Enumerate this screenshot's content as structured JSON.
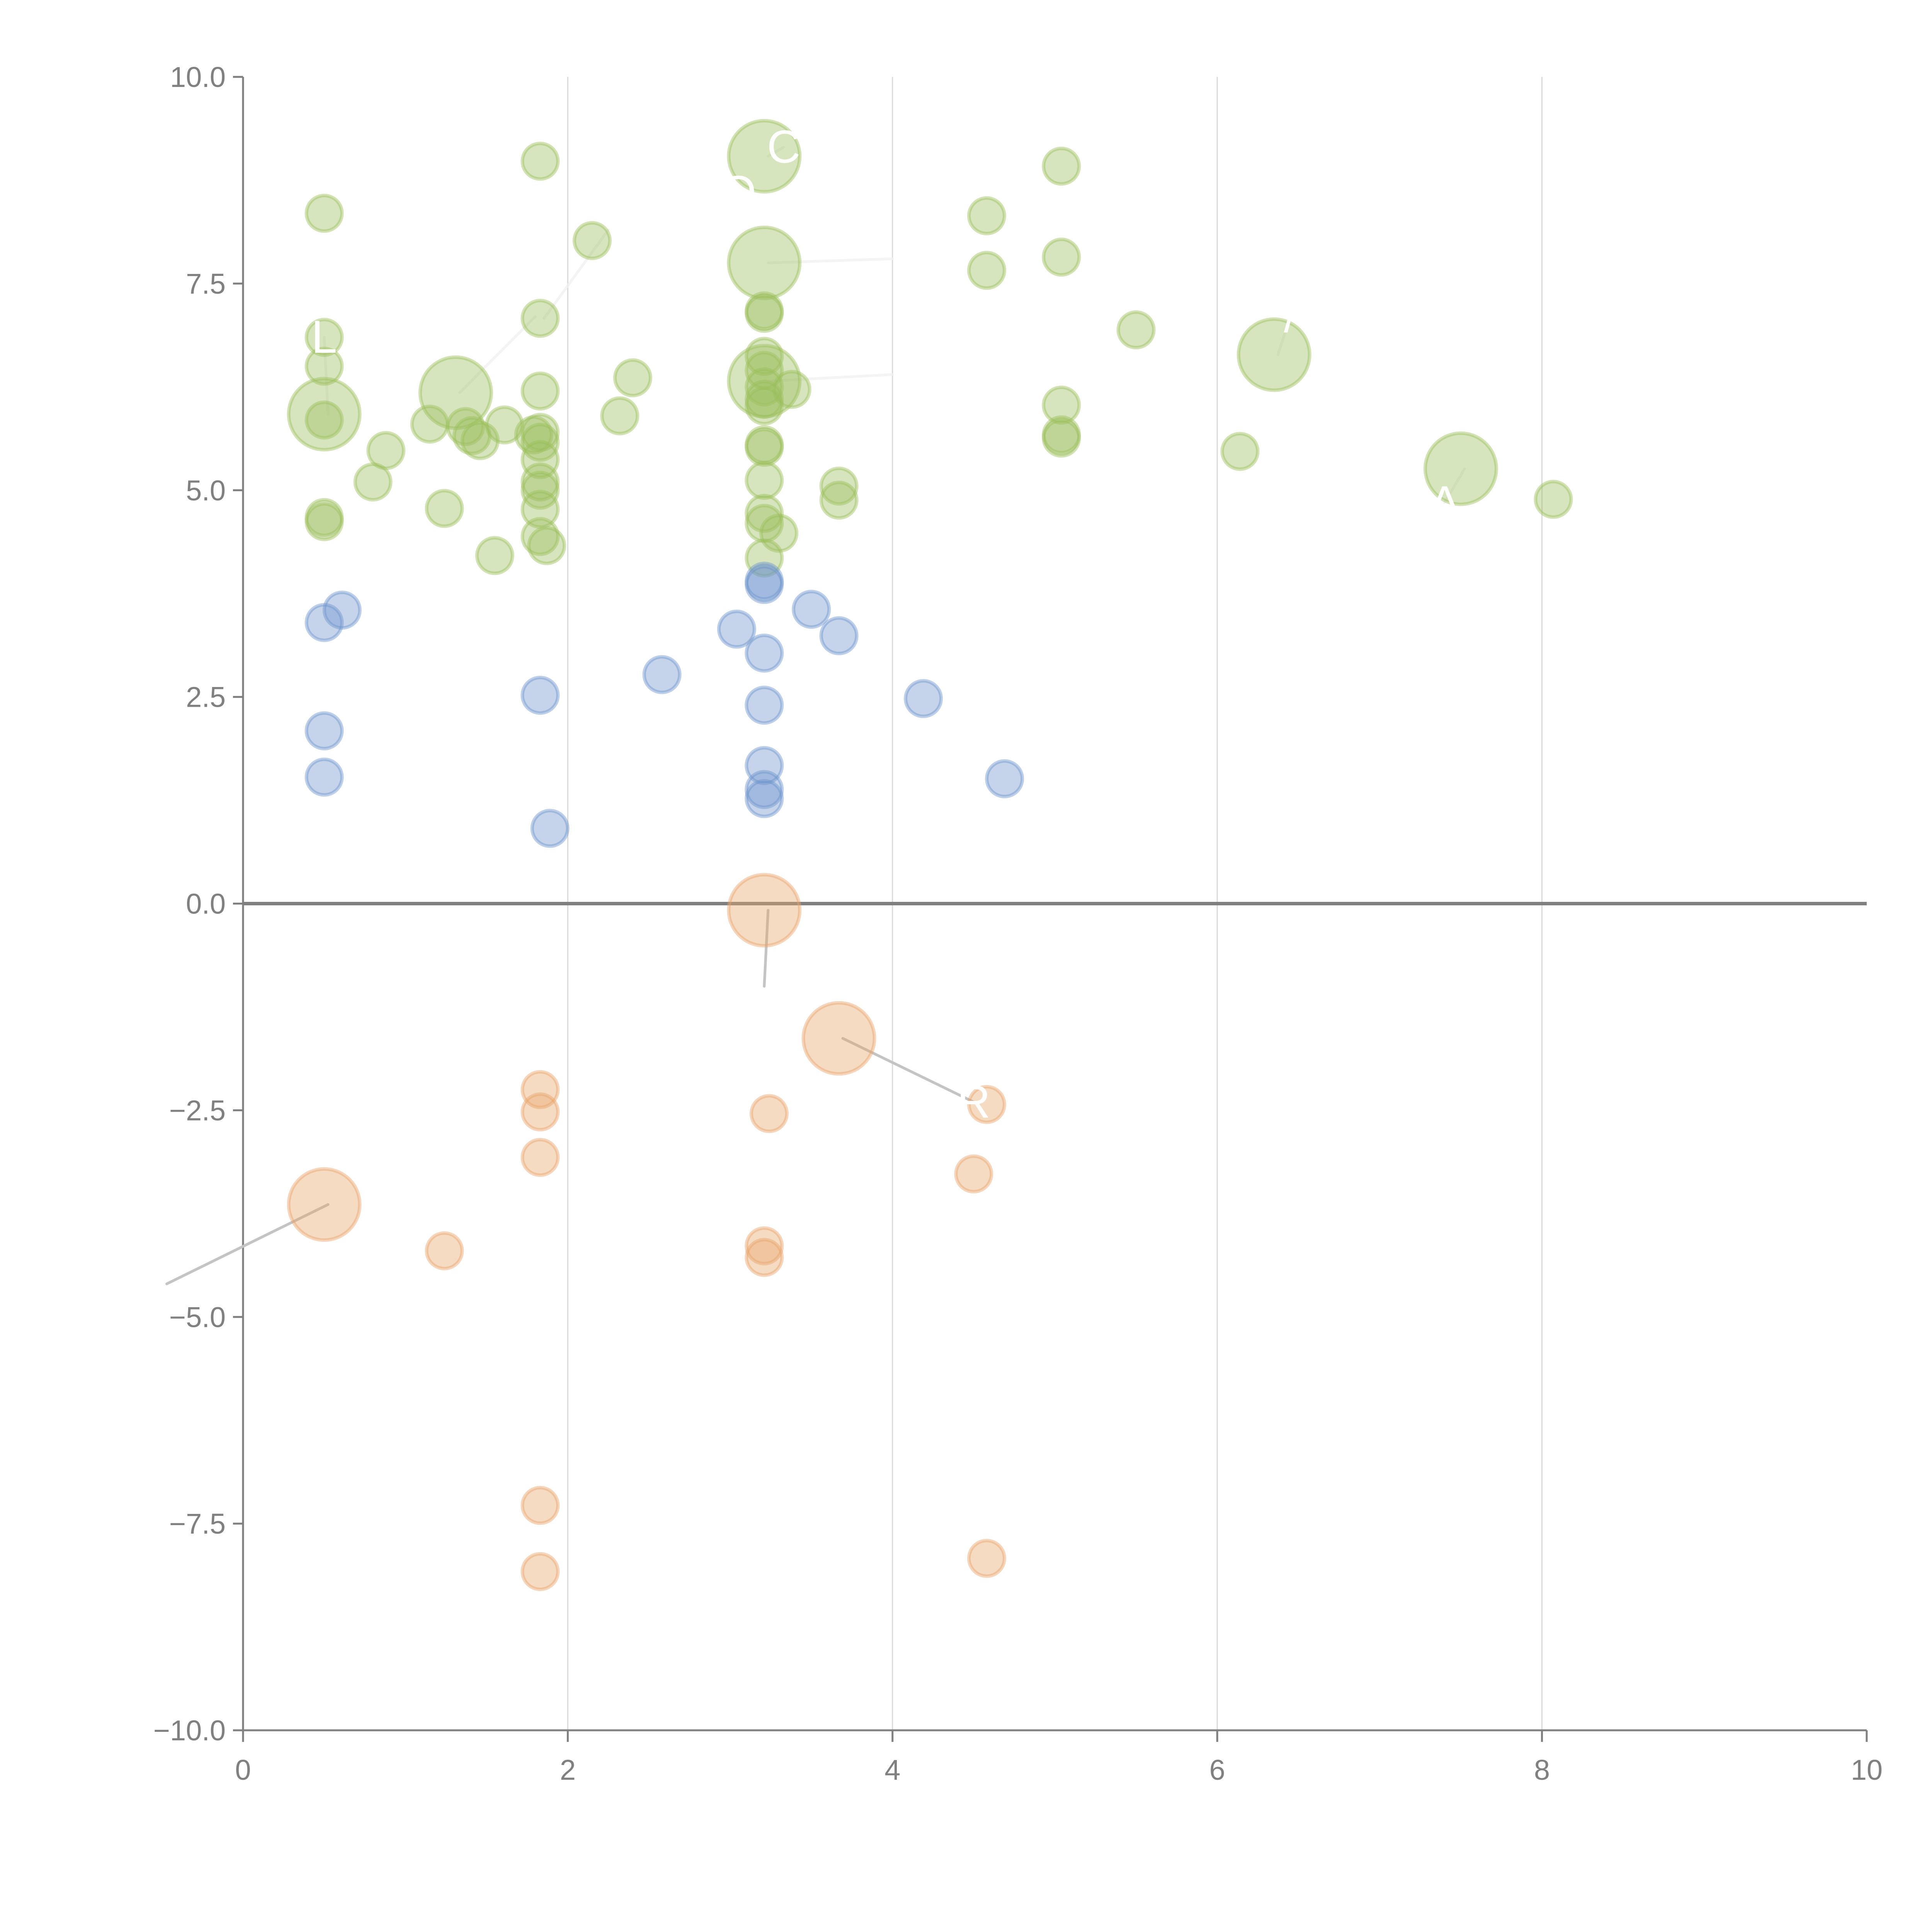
{
  "chart_data": {
    "type": "scatter",
    "subtype": "bubble",
    "title": "",
    "xlabel": "",
    "ylabel": "",
    "xlim": [
      0,
      10
    ],
    "ylim": [
      -10,
      10
    ],
    "x_ticks": [
      {
        "value": 0,
        "label": "0"
      },
      {
        "value": 2,
        "label": "2"
      },
      {
        "value": 4,
        "label": "4"
      },
      {
        "value": 6,
        "label": "6"
      },
      {
        "value": 8,
        "label": "8"
      },
      {
        "value": 10,
        "label": "10"
      }
    ],
    "y_ticks": [
      {
        "value": 10,
        "label": "10.0"
      },
      {
        "value": 7.5,
        "label": "7.5"
      },
      {
        "value": 5,
        "label": "5.0"
      },
      {
        "value": 2.5,
        "label": "2.5"
      },
      {
        "value": 0,
        "label": "0.0"
      },
      {
        "value": -2.5,
        "label": "−2.5"
      },
      {
        "value": -5,
        "label": "−5.0"
      },
      {
        "value": -7.5,
        "label": "−7.5"
      },
      {
        "value": -10,
        "label": "−10.0"
      }
    ],
    "grid": "vertical",
    "zero_line": true,
    "legend": "none",
    "series": [
      {
        "name": "green",
        "color": "#9bbf5c",
        "points": [
          {
            "x": 0.5,
            "y": 8.35,
            "size": 1
          },
          {
            "x": 0.5,
            "y": 6.85,
            "size": 1
          },
          {
            "x": 0.5,
            "y": 6.5,
            "size": 1
          },
          {
            "x": 0.5,
            "y": 5.92,
            "size": 3
          },
          {
            "x": 0.5,
            "y": 5.85,
            "size": 1
          },
          {
            "x": 0.5,
            "y": 4.67,
            "size": 1
          },
          {
            "x": 0.5,
            "y": 4.62,
            "size": 1
          },
          {
            "x": 0.8,
            "y": 5.1,
            "size": 1
          },
          {
            "x": 0.88,
            "y": 5.48,
            "size": 1
          },
          {
            "x": 1.15,
            "y": 5.8,
            "size": 1
          },
          {
            "x": 1.24,
            "y": 4.78,
            "size": 1
          },
          {
            "x": 1.31,
            "y": 6.18,
            "size": 3
          },
          {
            "x": 1.37,
            "y": 5.77,
            "size": 1
          },
          {
            "x": 1.41,
            "y": 5.66,
            "size": 1
          },
          {
            "x": 1.46,
            "y": 5.6,
            "size": 1
          },
          {
            "x": 1.55,
            "y": 4.21,
            "size": 1
          },
          {
            "x": 1.61,
            "y": 5.79,
            "size": 1
          },
          {
            "x": 1.79,
            "y": 5.67,
            "size": 1
          },
          {
            "x": 1.83,
            "y": 8.98,
            "size": 1
          },
          {
            "x": 1.83,
            "y": 7.08,
            "size": 1
          },
          {
            "x": 1.83,
            "y": 6.2,
            "size": 1
          },
          {
            "x": 1.83,
            "y": 5.7,
            "size": 1
          },
          {
            "x": 1.83,
            "y": 5.58,
            "size": 1
          },
          {
            "x": 1.83,
            "y": 5.37,
            "size": 1
          },
          {
            "x": 1.83,
            "y": 5.1,
            "size": 1
          },
          {
            "x": 1.83,
            "y": 5.0,
            "size": 1
          },
          {
            "x": 1.83,
            "y": 4.77,
            "size": 1
          },
          {
            "x": 1.83,
            "y": 4.44,
            "size": 1
          },
          {
            "x": 1.87,
            "y": 4.33,
            "size": 1
          },
          {
            "x": 2.15,
            "y": 8.02,
            "size": 1
          },
          {
            "x": 2.32,
            "y": 5.9,
            "size": 1
          },
          {
            "x": 2.4,
            "y": 6.36,
            "size": 1
          },
          {
            "x": 3.21,
            "y": 9.04,
            "size": 3
          },
          {
            "x": 3.21,
            "y": 7.75,
            "size": 3
          },
          {
            "x": 3.21,
            "y": 7.17,
            "size": 1
          },
          {
            "x": 3.21,
            "y": 7.14,
            "size": 1
          },
          {
            "x": 3.21,
            "y": 6.62,
            "size": 1
          },
          {
            "x": 3.21,
            "y": 6.45,
            "size": 1
          },
          {
            "x": 3.21,
            "y": 6.32,
            "size": 3
          },
          {
            "x": 3.21,
            "y": 6.25,
            "size": 1
          },
          {
            "x": 3.21,
            "y": 6.1,
            "size": 1
          },
          {
            "x": 3.21,
            "y": 6.02,
            "size": 1
          },
          {
            "x": 3.21,
            "y": 5.55,
            "size": 1
          },
          {
            "x": 3.21,
            "y": 5.52,
            "size": 1
          },
          {
            "x": 3.21,
            "y": 5.12,
            "size": 1
          },
          {
            "x": 3.21,
            "y": 4.72,
            "size": 1
          },
          {
            "x": 3.21,
            "y": 4.6,
            "size": 1
          },
          {
            "x": 3.21,
            "y": 4.18,
            "size": 1
          },
          {
            "x": 3.3,
            "y": 4.48,
            "size": 1
          },
          {
            "x": 3.38,
            "y": 6.22,
            "size": 1
          },
          {
            "x": 3.67,
            "y": 5.05,
            "size": 1
          },
          {
            "x": 3.67,
            "y": 4.88,
            "size": 1
          },
          {
            "x": 4.58,
            "y": 8.32,
            "size": 1
          },
          {
            "x": 4.58,
            "y": 7.66,
            "size": 1
          },
          {
            "x": 5.04,
            "y": 8.92,
            "size": 1
          },
          {
            "x": 5.04,
            "y": 7.82,
            "size": 1
          },
          {
            "x": 5.04,
            "y": 6.03,
            "size": 1
          },
          {
            "x": 5.04,
            "y": 5.67,
            "size": 1
          },
          {
            "x": 5.04,
            "y": 5.63,
            "size": 1
          },
          {
            "x": 5.5,
            "y": 6.94,
            "size": 1
          },
          {
            "x": 6.14,
            "y": 5.47,
            "size": 1
          },
          {
            "x": 6.35,
            "y": 6.64,
            "size": 3
          },
          {
            "x": 7.5,
            "y": 5.26,
            "size": 3
          },
          {
            "x": 8.07,
            "y": 4.89,
            "size": 1
          }
        ]
      },
      {
        "name": "blue",
        "color": "#6d94cc",
        "points": [
          {
            "x": 0.5,
            "y": 3.4,
            "size": 1
          },
          {
            "x": 0.5,
            "y": 2.09,
            "size": 1
          },
          {
            "x": 0.5,
            "y": 1.53,
            "size": 1
          },
          {
            "x": 0.61,
            "y": 3.55,
            "size": 1
          },
          {
            "x": 1.83,
            "y": 2.52,
            "size": 1
          },
          {
            "x": 1.89,
            "y": 0.91,
            "size": 1
          },
          {
            "x": 2.58,
            "y": 2.77,
            "size": 1
          },
          {
            "x": 3.04,
            "y": 3.32,
            "size": 1
          },
          {
            "x": 3.21,
            "y": 3.9,
            "size": 1
          },
          {
            "x": 3.21,
            "y": 3.86,
            "size": 1
          },
          {
            "x": 3.21,
            "y": 3.03,
            "size": 1
          },
          {
            "x": 3.21,
            "y": 2.4,
            "size": 1
          },
          {
            "x": 3.21,
            "y": 1.67,
            "size": 1
          },
          {
            "x": 3.21,
            "y": 1.38,
            "size": 1
          },
          {
            "x": 3.21,
            "y": 1.27,
            "size": 1
          },
          {
            "x": 3.5,
            "y": 3.56,
            "size": 1
          },
          {
            "x": 3.67,
            "y": 3.24,
            "size": 1
          },
          {
            "x": 4.19,
            "y": 2.48,
            "size": 1
          },
          {
            "x": 4.69,
            "y": 1.51,
            "size": 1
          }
        ]
      },
      {
        "name": "orange",
        "color": "#e9a56a",
        "points": [
          {
            "x": 3.21,
            "y": -0.08,
            "size": 3
          },
          {
            "x": 3.67,
            "y": -1.63,
            "size": 3
          },
          {
            "x": 0.5,
            "y": -3.64,
            "size": 3
          },
          {
            "x": 1.24,
            "y": -4.2,
            "size": 1
          },
          {
            "x": 1.83,
            "y": -2.25,
            "size": 1
          },
          {
            "x": 1.83,
            "y": -2.52,
            "size": 1
          },
          {
            "x": 1.83,
            "y": -3.07,
            "size": 1
          },
          {
            "x": 1.83,
            "y": -7.28,
            "size": 1
          },
          {
            "x": 1.83,
            "y": -8.08,
            "size": 1
          },
          {
            "x": 3.24,
            "y": -2.54,
            "size": 1
          },
          {
            "x": 3.21,
            "y": -4.14,
            "size": 1
          },
          {
            "x": 3.21,
            "y": -4.28,
            "size": 1
          },
          {
            "x": 4.5,
            "y": -3.27,
            "size": 1
          },
          {
            "x": 4.58,
            "y": -2.43,
            "size": 1
          },
          {
            "x": 4.58,
            "y": -7.92,
            "size": 1
          }
        ]
      }
    ],
    "annotations": [
      {
        "text": "C",
        "x": 3.21,
        "y": 9.04,
        "tx": 3.33,
        "ty": 9.15,
        "leader": "light"
      },
      {
        "text": "O",
        "x": 3.21,
        "y": 9.04,
        "tx": 3.05,
        "ty": 8.6,
        "leader": "none"
      },
      {
        "text": "L",
        "x": 0.5,
        "y": 5.92,
        "tx": 0.5,
        "ty": 6.85,
        "leader": "light"
      },
      {
        "text": "",
        "x": 1.31,
        "y": 6.18,
        "tx": 1.8,
        "ty": 7.1,
        "leader": "light"
      },
      {
        "text": "",
        "x": 1.83,
        "y": 7.08,
        "tx": 2.25,
        "ty": 8.15,
        "leader": "light"
      },
      {
        "text": "",
        "x": 3.21,
        "y": 7.75,
        "tx": 4.0,
        "ty": 7.8,
        "leader": "light"
      },
      {
        "text": "",
        "x": 3.21,
        "y": 6.32,
        "tx": 4.0,
        "ty": 6.4,
        "leader": "light"
      },
      {
        "text": "/",
        "x": 6.35,
        "y": 6.64,
        "tx": 6.45,
        "ty": 7.1,
        "leader": "light"
      },
      {
        "text": "A",
        "x": 7.5,
        "y": 5.26,
        "tx": 7.4,
        "ty": 4.85,
        "leader": "light"
      },
      {
        "text": "R",
        "x": 3.67,
        "y": -1.63,
        "tx": 4.5,
        "ty": -2.4,
        "leader": "dark"
      },
      {
        "text": "",
        "x": 3.21,
        "y": -0.08,
        "tx": 3.21,
        "ty": -1.0,
        "leader": "dark"
      },
      {
        "text": "",
        "x": 0.5,
        "y": -3.64,
        "tx": -0.47,
        "ty": -4.6,
        "leader": "dark"
      }
    ]
  }
}
